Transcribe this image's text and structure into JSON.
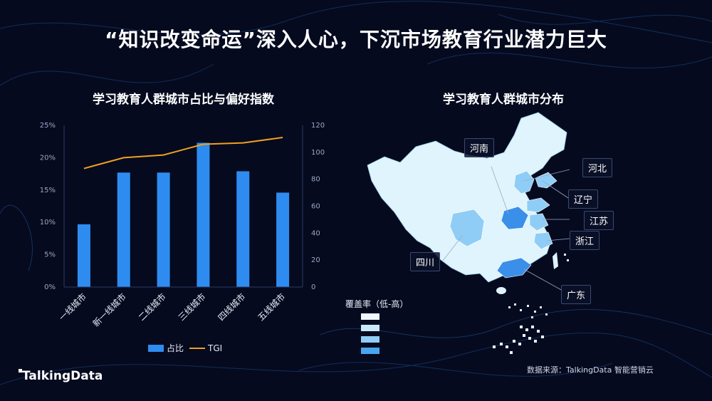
{
  "page": {
    "title": "“知识改变命运”深入人心，下沉市场教育行业潜力巨大"
  },
  "colors": {
    "background": "#050a1f",
    "bar": "#2e8cf0",
    "line": "#f0a020",
    "map_low": "#dff4fc",
    "map_high": "#3a8fe8"
  },
  "bar_panel": {
    "title": "学习教育人群城市占比与偏好指数"
  },
  "chart_data": {
    "type": "bar",
    "categories": [
      "一线城市",
      "新一线城市",
      "二线城市",
      "三线城市",
      "四线城市",
      "五线城市"
    ],
    "series": [
      {
        "name": "占比",
        "type": "bar",
        "axis": "left",
        "values": [
          9.7,
          17.7,
          17.7,
          22.3,
          17.9,
          14.6
        ]
      },
      {
        "name": "TGI",
        "type": "line",
        "axis": "right",
        "values": [
          88,
          96,
          98,
          106,
          107,
          111
        ]
      }
    ],
    "y_left": {
      "range": [
        0,
        25
      ],
      "ticks": [
        "0%",
        "5%",
        "10%",
        "15%",
        "20%",
        "25%"
      ]
    },
    "y_right": {
      "range": [
        0,
        120
      ],
      "ticks": [
        "0",
        "20",
        "40",
        "60",
        "80",
        "100",
        "120"
      ]
    },
    "legend": {
      "position": "bottom",
      "items": [
        "占比",
        "TGI"
      ]
    },
    "grid": false
  },
  "map_panel": {
    "title": "学习教育人群城市分布",
    "labels": [
      "河南",
      "河北",
      "辽宁",
      "江苏",
      "浙江",
      "四川",
      "广东"
    ],
    "coverage_legend": {
      "title": "覆盖率（低-高）",
      "colors": [
        "#eef8ff",
        "#c9e9fb",
        "#8fcdf6",
        "#4aa5ef"
      ]
    }
  },
  "footer": {
    "source": "数据来源：TalkingData 智能营销云",
    "logo": "TalkingData"
  }
}
